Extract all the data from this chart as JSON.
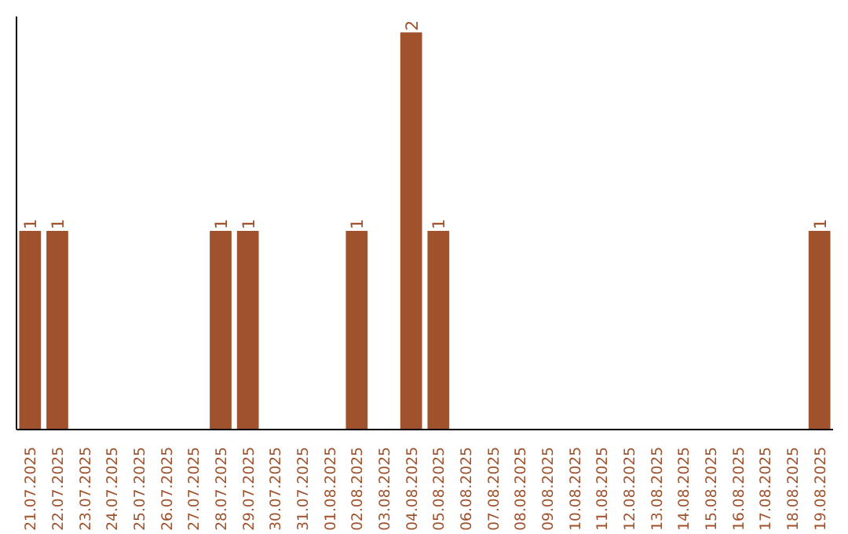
{
  "chart_data": {
    "type": "bar",
    "categories": [
      "21.07.2025",
      "22.07.2025",
      "23.07.2025",
      "24.07.2025",
      "25.07.2025",
      "26.07.2025",
      "27.07.2025",
      "28.07.2025",
      "29.07.2025",
      "30.07.2025",
      "31.07.2025",
      "01.08.2025",
      "02.08.2025",
      "03.08.2025",
      "04.08.2025",
      "05.08.2025",
      "06.08.2025",
      "07.08.2025",
      "08.08.2025",
      "09.08.2025",
      "10.08.2025",
      "11.08.2025",
      "12.08.2025",
      "13.08.2025",
      "14.08.2025",
      "15.08.2025",
      "16.08.2025",
      "17.08.2025",
      "18.08.2025",
      "19.08.2025"
    ],
    "values": [
      1,
      1,
      0,
      0,
      0,
      0,
      0,
      1,
      1,
      0,
      0,
      0,
      1,
      0,
      2,
      1,
      0,
      0,
      0,
      0,
      0,
      0,
      0,
      0,
      0,
      0,
      0,
      0,
      0,
      1
    ],
    "value_labels": [
      "1",
      "1",
      null,
      null,
      null,
      null,
      null,
      "1",
      "1",
      null,
      null,
      null,
      "1",
      null,
      "2",
      "1",
      null,
      null,
      null,
      null,
      null,
      null,
      null,
      null,
      null,
      null,
      null,
      null,
      null,
      "1"
    ],
    "color": "#a0522d",
    "grid": false
  }
}
